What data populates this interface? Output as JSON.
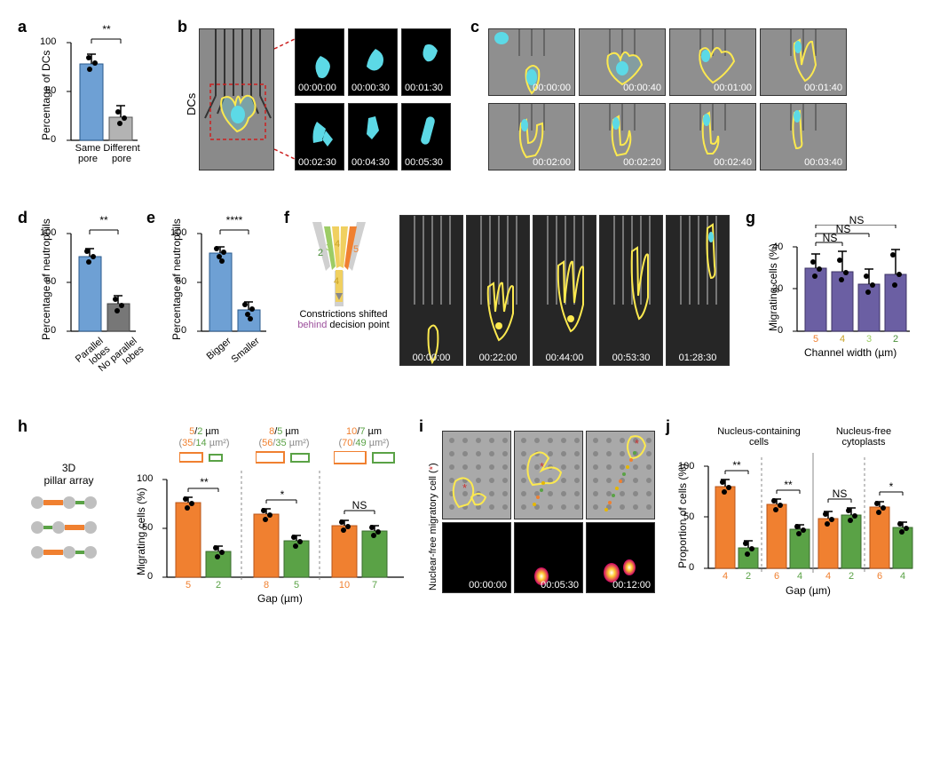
{
  "panel_a": {
    "label": "a",
    "type": "bar",
    "ylabel": "Percentage of DCs",
    "ylim": [
      0,
      100
    ],
    "ytick_step": 50,
    "categories": [
      "Same\npore",
      "Different\npore"
    ],
    "values": [
      78,
      24
    ],
    "errors": [
      10,
      12
    ],
    "bar_colors": [
      "#6ea0d4",
      "#b3b3b3"
    ],
    "sig": "**",
    "dot_color": "#000000"
  },
  "panel_b": {
    "label": "b",
    "sidelabel": "DCs",
    "timestamps": [
      "00:00:00",
      "00:00:30",
      "00:01:30",
      "00:02:30",
      "00:04:30",
      "00:05:30"
    ],
    "main_bg": "#8a8a8a",
    "inset_bg": "#000000",
    "nucleus_color": "#5cd9e6",
    "outline_color": "#fce94f"
  },
  "panel_c": {
    "label": "c",
    "timestamps": [
      "00:00:00",
      "00:00:40",
      "00:01:00",
      "00:01:40",
      "00:02:00",
      "00:02:20",
      "00:02:40",
      "00:03:40"
    ],
    "bg": "#8f8f8f",
    "outline_color": "#fce94f",
    "nucleus_color": "#5cd9e6"
  },
  "panel_d": {
    "label": "d",
    "type": "bar",
    "ylabel": "Percentage of neutrophils",
    "ylim": [
      0,
      100
    ],
    "ytick_step": 50,
    "categories": [
      "Parallel\nlobes",
      "No parallel\nlobes"
    ],
    "values": [
      76,
      28
    ],
    "errors": [
      8,
      8
    ],
    "bar_colors": [
      "#6ea0d4",
      "#777777"
    ],
    "sig": "**"
  },
  "panel_e": {
    "label": "e",
    "type": "bar",
    "ylabel": "Percentage of neutrophils",
    "ylim": [
      0,
      100
    ],
    "ytick_step": 50,
    "categories": [
      "Bigger",
      "Smaller"
    ],
    "values": [
      80,
      22
    ],
    "errors": [
      6,
      8
    ],
    "bar_colors": [
      "#6ea0d4",
      "#6ea0d4"
    ],
    "sig": "****"
  },
  "panel_f": {
    "label": "f",
    "caption": "Constrictions shifted behind decision point",
    "caption_highlight": "behind",
    "highlight_color": "#9c4f9c",
    "timestamps": [
      "00:00:00",
      "00:22:00",
      "00:44:00",
      "00:53:30",
      "01:28:30"
    ],
    "channel_colors": {
      "2": "#4a8f3a",
      "3": "#9ccc65",
      "4": "#f0d060",
      "5": "#f08030"
    },
    "bg": "#262626",
    "outline_color": "#fce94f"
  },
  "panel_g": {
    "label": "g",
    "type": "bar",
    "ylabel": "Migrating cells (%)",
    "xlabel": "Channel width (µm)",
    "ylim": [
      0,
      40
    ],
    "ytick_step": 20,
    "categories": [
      "5",
      "4",
      "3",
      "2"
    ],
    "cat_colors": [
      "#f08030",
      "#f0d060",
      "#9ccc65",
      "#4a8f3a"
    ],
    "values": [
      30,
      28,
      22,
      27
    ],
    "errors": [
      7,
      10,
      7,
      12
    ],
    "bar_colors": [
      "#6b5fa3",
      "#6b5fa3",
      "#6b5fa3",
      "#6b5fa3"
    ],
    "sig": [
      "NS",
      "NS",
      "NS"
    ]
  },
  "panel_h": {
    "label": "h",
    "sidelabel": "3D\npillar array",
    "type": "grouped-bar",
    "ylabel": "Migrating cells (%)",
    "xlabel": "Gap (µm)",
    "ylim": [
      0,
      100
    ],
    "ytick_step": 50,
    "groups": [
      {
        "pair_label_top": "5/2 µm",
        "pair_label_bot": "(35/14 µm²)",
        "colors": [
          "#f08030",
          "#5aa246"
        ],
        "xlabels": [
          "5",
          "2"
        ],
        "values": [
          76,
          26
        ],
        "errors": [
          5,
          5
        ],
        "sig": "**"
      },
      {
        "pair_label_top": "8/5 µm",
        "pair_label_bot": "(56/35 µm²)",
        "colors": [
          "#f08030",
          "#5aa246"
        ],
        "xlabels": [
          "8",
          "5"
        ],
        "values": [
          64,
          37
        ],
        "errors": [
          5,
          5
        ],
        "sig": "*"
      },
      {
        "pair_label_top": "10/7 µm",
        "pair_label_bot": "(70/49 µm²)",
        "colors": [
          "#f08030",
          "#5aa246"
        ],
        "xlabels": [
          "10",
          "7"
        ],
        "values": [
          53,
          47
        ],
        "errors": [
          4,
          4
        ],
        "sig": "NS"
      }
    ],
    "pillar_gray": "#bfbfbf",
    "pillar_orange": "#f08030",
    "pillar_green": "#5aa246"
  },
  "panel_i": {
    "label": "i",
    "sidelabel": "Nuclear-free migratory cell (*)",
    "timestamps": [
      "00:00:00",
      "00:05:30",
      "00:12:00"
    ],
    "top_bg": "#a9a9a9",
    "bot_bg": "#000000",
    "outline_color": "#fce94f",
    "dot_color": "#cc3333",
    "trail_colors": [
      "#f08030",
      "#5aa246",
      "#e6b800"
    ],
    "dot_gray": "#888888"
  },
  "panel_j": {
    "label": "j",
    "type": "grouped-bar",
    "ylabel": "Proportion of cells (%)",
    "xlabel": "Gap (µm)",
    "header_left": "Nucleus-containing\ncells",
    "header_right": "Nucleus-free\ncytoplasts",
    "ylim": [
      0,
      100
    ],
    "ytick_step": 50,
    "groups": [
      {
        "colors": [
          "#f08030",
          "#5aa246"
        ],
        "xlabels": [
          "4",
          "2"
        ],
        "values": [
          80,
          20
        ],
        "errors": [
          7,
          7
        ],
        "sig": "**"
      },
      {
        "colors": [
          "#f08030",
          "#5aa246"
        ],
        "xlabels": [
          "6",
          "4"
        ],
        "values": [
          63,
          38
        ],
        "errors": [
          5,
          4
        ],
        "sig": "**"
      },
      {
        "colors": [
          "#f08030",
          "#5aa246"
        ],
        "xlabels": [
          "4",
          "2"
        ],
        "values": [
          49,
          52
        ],
        "errors": [
          7,
          7
        ],
        "sig": "NS"
      },
      {
        "colors": [
          "#f08030",
          "#5aa246"
        ],
        "xlabels": [
          "6",
          "4"
        ],
        "values": [
          60,
          40
        ],
        "errors": [
          5,
          5
        ],
        "sig": "*"
      }
    ]
  }
}
